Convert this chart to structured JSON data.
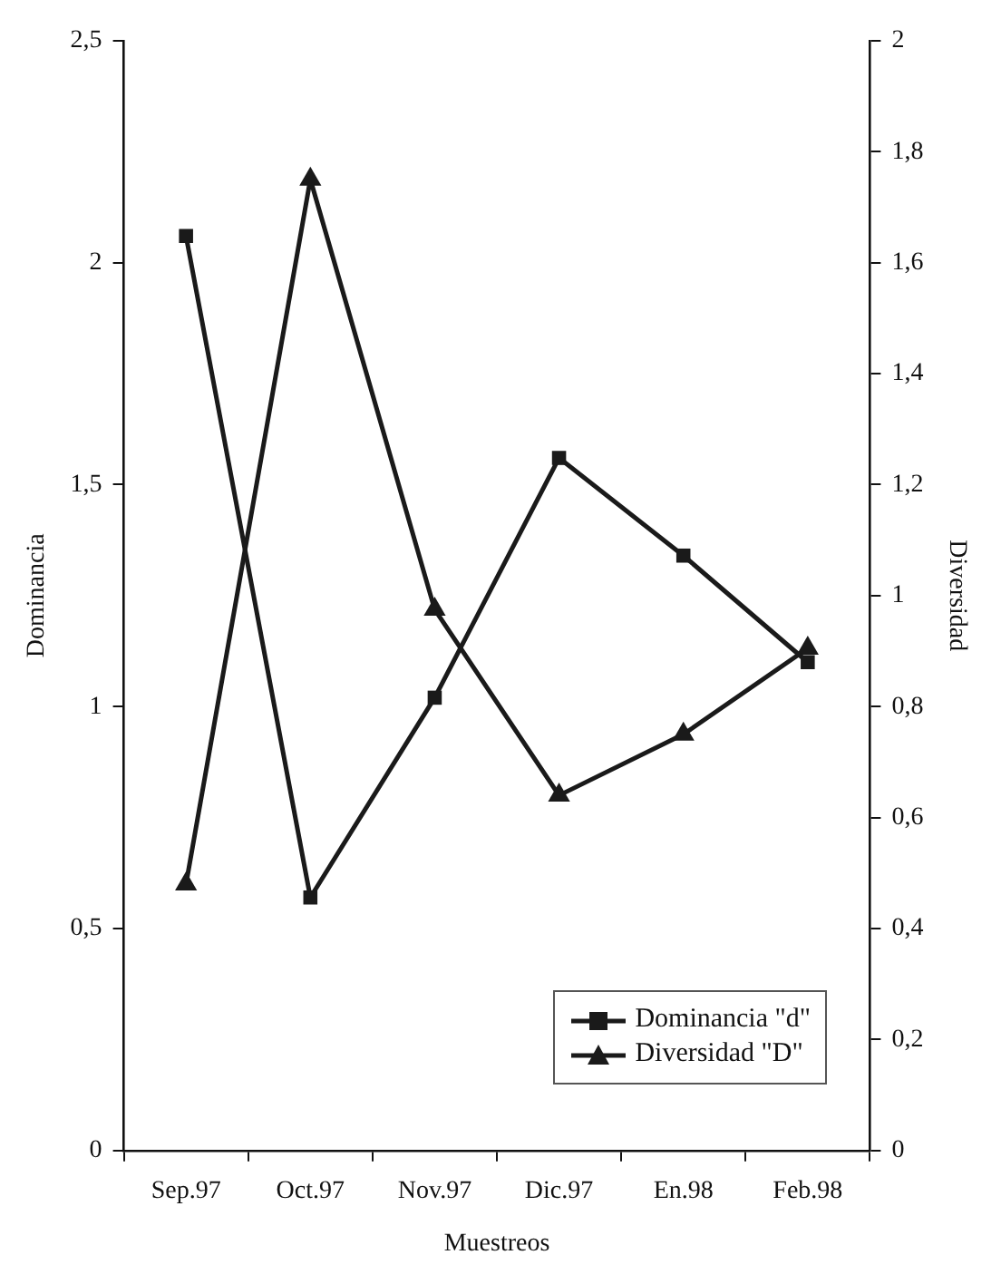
{
  "chart_data": {
    "type": "line",
    "xlabel": "Muestreos",
    "ylabel": "Dominancia",
    "y2label": "Diversidad",
    "categories": [
      "Sep.97",
      "Oct.97",
      "Nov.97",
      "Dic.97",
      "En.98",
      "Feb.98"
    ],
    "series": [
      {
        "name": "Dominancia \"d\"",
        "color": "#1a1a1a",
        "marker": "square",
        "values": [
          2.06,
          0.57,
          1.02,
          1.56,
          1.34,
          1.1
        ]
      },
      {
        "name": "Diversidad \"D\"",
        "color": "#1a1a1a",
        "marker": "triangle",
        "axis": "y2",
        "values": [
          0.48,
          1.75,
          0.975,
          0.64,
          0.75,
          0.905
        ]
      }
    ],
    "ylim": [
      0,
      2.5
    ],
    "yticks": [
      0,
      {
        "value": 0.5,
        "label": "0,5"
      },
      1,
      {
        "value": 1.5,
        "label": "1,5"
      },
      2,
      {
        "value": 2.5,
        "label": "2,5"
      }
    ],
    "y2lim": [
      0,
      2
    ],
    "y2ticks": [
      0,
      {
        "value": 0.2,
        "label": "0,2"
      },
      {
        "value": 0.4,
        "label": "0,4"
      },
      {
        "value": 0.6,
        "label": "0,6"
      },
      {
        "value": 0.8,
        "label": "0,8"
      },
      1,
      {
        "value": 1.2,
        "label": "1,2"
      },
      {
        "value": 1.4,
        "label": "1,4"
      },
      {
        "value": 1.6,
        "label": "1,6"
      },
      {
        "value": 1.8,
        "label": "1,8"
      },
      2
    ],
    "grid": false,
    "legend": "bottom right",
    "line_style": "solid"
  }
}
